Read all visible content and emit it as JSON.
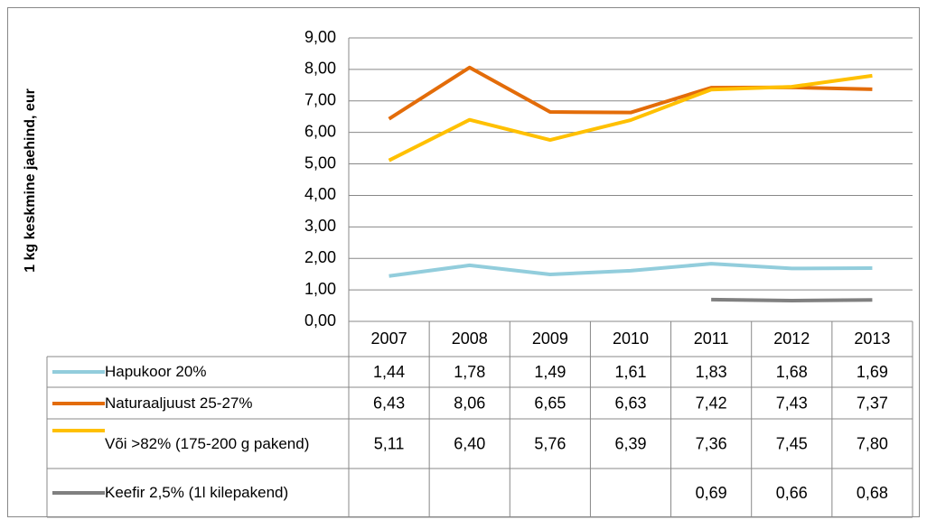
{
  "chart_data": {
    "type": "line",
    "y_axis_label": "1 kg keskmine jaehind, eur",
    "categories": [
      "2007",
      "2008",
      "2009",
      "2010",
      "2011",
      "2012",
      "2013"
    ],
    "ylim": [
      0,
      9
    ],
    "yticks": [
      {
        "value": 0,
        "label": "0,00"
      },
      {
        "value": 1,
        "label": "1,00"
      },
      {
        "value": 2,
        "label": "2,00"
      },
      {
        "value": 3,
        "label": "3,00"
      },
      {
        "value": 4,
        "label": "4,00"
      },
      {
        "value": 5,
        "label": "5,00"
      },
      {
        "value": 6,
        "label": "6,00"
      },
      {
        "value": 7,
        "label": "7,00"
      },
      {
        "value": 8,
        "label": "8,00"
      },
      {
        "value": 9,
        "label": "9,00"
      }
    ],
    "grid": true,
    "series": [
      {
        "name": "Hapukoor 20%",
        "color": "#92cddc",
        "values": [
          1.44,
          1.78,
          1.49,
          1.61,
          1.83,
          1.68,
          1.69
        ],
        "value_labels": [
          "1,44",
          "1,78",
          "1,49",
          "1,61",
          "1,83",
          "1,68",
          "1,69"
        ]
      },
      {
        "name": "Naturaaljuust 25-27%",
        "color": "#e36c09",
        "values": [
          6.43,
          8.06,
          6.65,
          6.63,
          7.42,
          7.43,
          7.37
        ],
        "value_labels": [
          "6,43",
          "8,06",
          "6,65",
          "6,63",
          "7,42",
          "7,43",
          "7,37"
        ]
      },
      {
        "name": "Või >82% (175-200 g pakend)",
        "color": "#ffc000",
        "values": [
          5.11,
          6.4,
          5.76,
          6.39,
          7.36,
          7.45,
          7.8
        ],
        "value_labels": [
          "5,11",
          "6,40",
          "5,76",
          "6,39",
          "7,36",
          "7,45",
          "7,80"
        ]
      },
      {
        "name": "Keefir 2,5% (1l kilepakend)",
        "color": "#808080",
        "values": [
          null,
          null,
          null,
          null,
          0.69,
          0.66,
          0.68
        ],
        "value_labels": [
          null,
          null,
          null,
          null,
          "0,69",
          "0,66",
          "0,68"
        ]
      }
    ]
  }
}
